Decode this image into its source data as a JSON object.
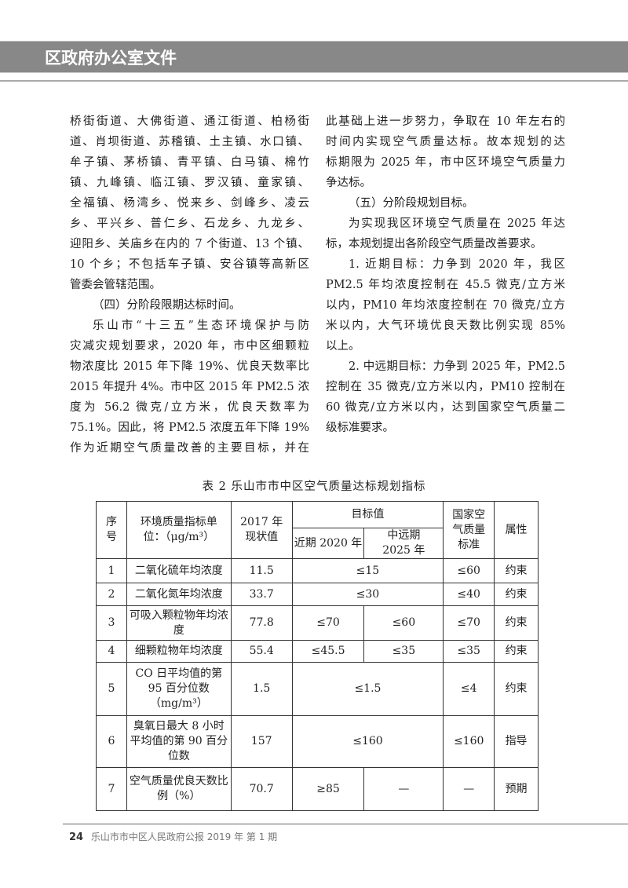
{
  "header": {
    "title": "区政府办公室文件"
  },
  "left_column": [
    {
      "indent": false,
      "lines": [
        "桥街街道、大佛街道、通江街道、柏杨街",
        "道、肖坝街道、苏稽镇、土主镇、水口镇、",
        "牟子镇、茅桥镇、青平镇、白马镇、棉竹",
        "镇、九峰镇、临江镇、罗汉镇、童家镇、",
        "全福镇、杨湾乡、悦来乡、剑峰乡、凌云",
        "乡、平兴乡、普仁乡、石龙乡、九龙乡、",
        "迎阳乡、关庙乡在内的 7 个街道、13 个镇、",
        "10 个乡；不包括车子镇、安谷镇等高新区",
        "管委会管辖范围。"
      ]
    },
    {
      "indent": true,
      "lines": [
        "（四）分阶段限期达标时间。"
      ]
    },
    {
      "indent": true,
      "lines": [
        "乐山市“十三五”生态环境保护与防",
        "灾减灾规划要求，2020 年，市中区细颗粒",
        "物浓度比 2015 年下降 19%、优良天数率比",
        "2015 年提升 4%。市中区 2015 年 PM2.5 浓",
        "度为 56.2 微克/立方米，优良天数率为",
        "75.1%。因此，将 PM2.5 浓度五年下降 19%",
        "作为近期空气质量改善的主要目标，并在"
      ],
      "continues": true
    }
  ],
  "right_column": [
    {
      "indent": false,
      "lines": [
        "此基础上进一步努力，争取在 10 年左右的",
        "时间内实现空气质量达标。故本规划的达",
        "标期限为 2025 年，市中区环境空气质量力",
        "争达标。"
      ]
    },
    {
      "indent": true,
      "lines": [
        "（五）分阶段规划目标。"
      ]
    },
    {
      "indent": true,
      "lines": [
        "为实现我区环境空气质量在 2025 年达",
        "标，本规划提出各阶段空气质量改善要求。"
      ]
    },
    {
      "indent": true,
      "lines": [
        "1. 近期目标：力争到 2020 年，我区",
        "PM2.5 年均浓度控制在 45.5 微克/立方米",
        "以内，PM10 年均浓度控制在 70 微克/立方",
        "米以内，大气环境优良天数比例实现 85%",
        "以上。"
      ]
    },
    {
      "indent": true,
      "lines": [
        "2. 中远期目标：力争到 2025 年，PM2.5",
        "控制在 35 微克/立方米以内，PM10 控制在",
        "60 微克/立方米以内，达到国家空气质量二",
        "级标准要求。"
      ]
    }
  ],
  "table": {
    "caption": "表 2  乐山市市中区空气质量达标规划指标",
    "headers": {
      "seq": "序号",
      "indicator": "环境质量指标单位：（μg/m³）",
      "current": "2017 年现状值",
      "target": "目标值",
      "near": "近期 2020 年",
      "mid": "中远期 2025 年",
      "national": "国家空气质量标准",
      "attr": "属性"
    },
    "rows": [
      {
        "seq": "1",
        "indicator": "二氧化硫年均浓度",
        "current": "11.5",
        "target": "≤15",
        "national": "≤60",
        "attr": "约束"
      },
      {
        "seq": "2",
        "indicator": "二氧化氮年均浓度",
        "current": "33.7",
        "target": "≤30",
        "national": "≤40",
        "attr": "约束"
      },
      {
        "seq": "3",
        "indicator": "可吸入颗粒物年均浓度",
        "current": "77.8",
        "near": "≤70",
        "mid": "≤60",
        "national": "≤70",
        "attr": "约束"
      },
      {
        "seq": "4",
        "indicator": "细颗粒物年均浓度",
        "current": "55.4",
        "near": "≤45.5",
        "mid": "≤35",
        "national": "≤35",
        "attr": "约束"
      },
      {
        "seq": "5",
        "indicator": "CO 日平均值的第 95 百分位数（mg/m³）",
        "current": "1.5",
        "target": "≤1.5",
        "national": "≤4",
        "attr": "约束"
      },
      {
        "seq": "6",
        "indicator": "臭氧日最大 8 小时平均值的第 90 百分位数",
        "current": "157",
        "target": "≤160",
        "national": "≤160",
        "attr": "指导"
      },
      {
        "seq": "7",
        "indicator": "空气质量优良天数比例（%）",
        "current": "70.7",
        "near": "≥85",
        "mid": "—",
        "national": "—",
        "attr": "预期"
      }
    ]
  },
  "footer": {
    "page": "24",
    "text": "乐山市市中区人民政府公报 2019 年  第 1 期"
  }
}
